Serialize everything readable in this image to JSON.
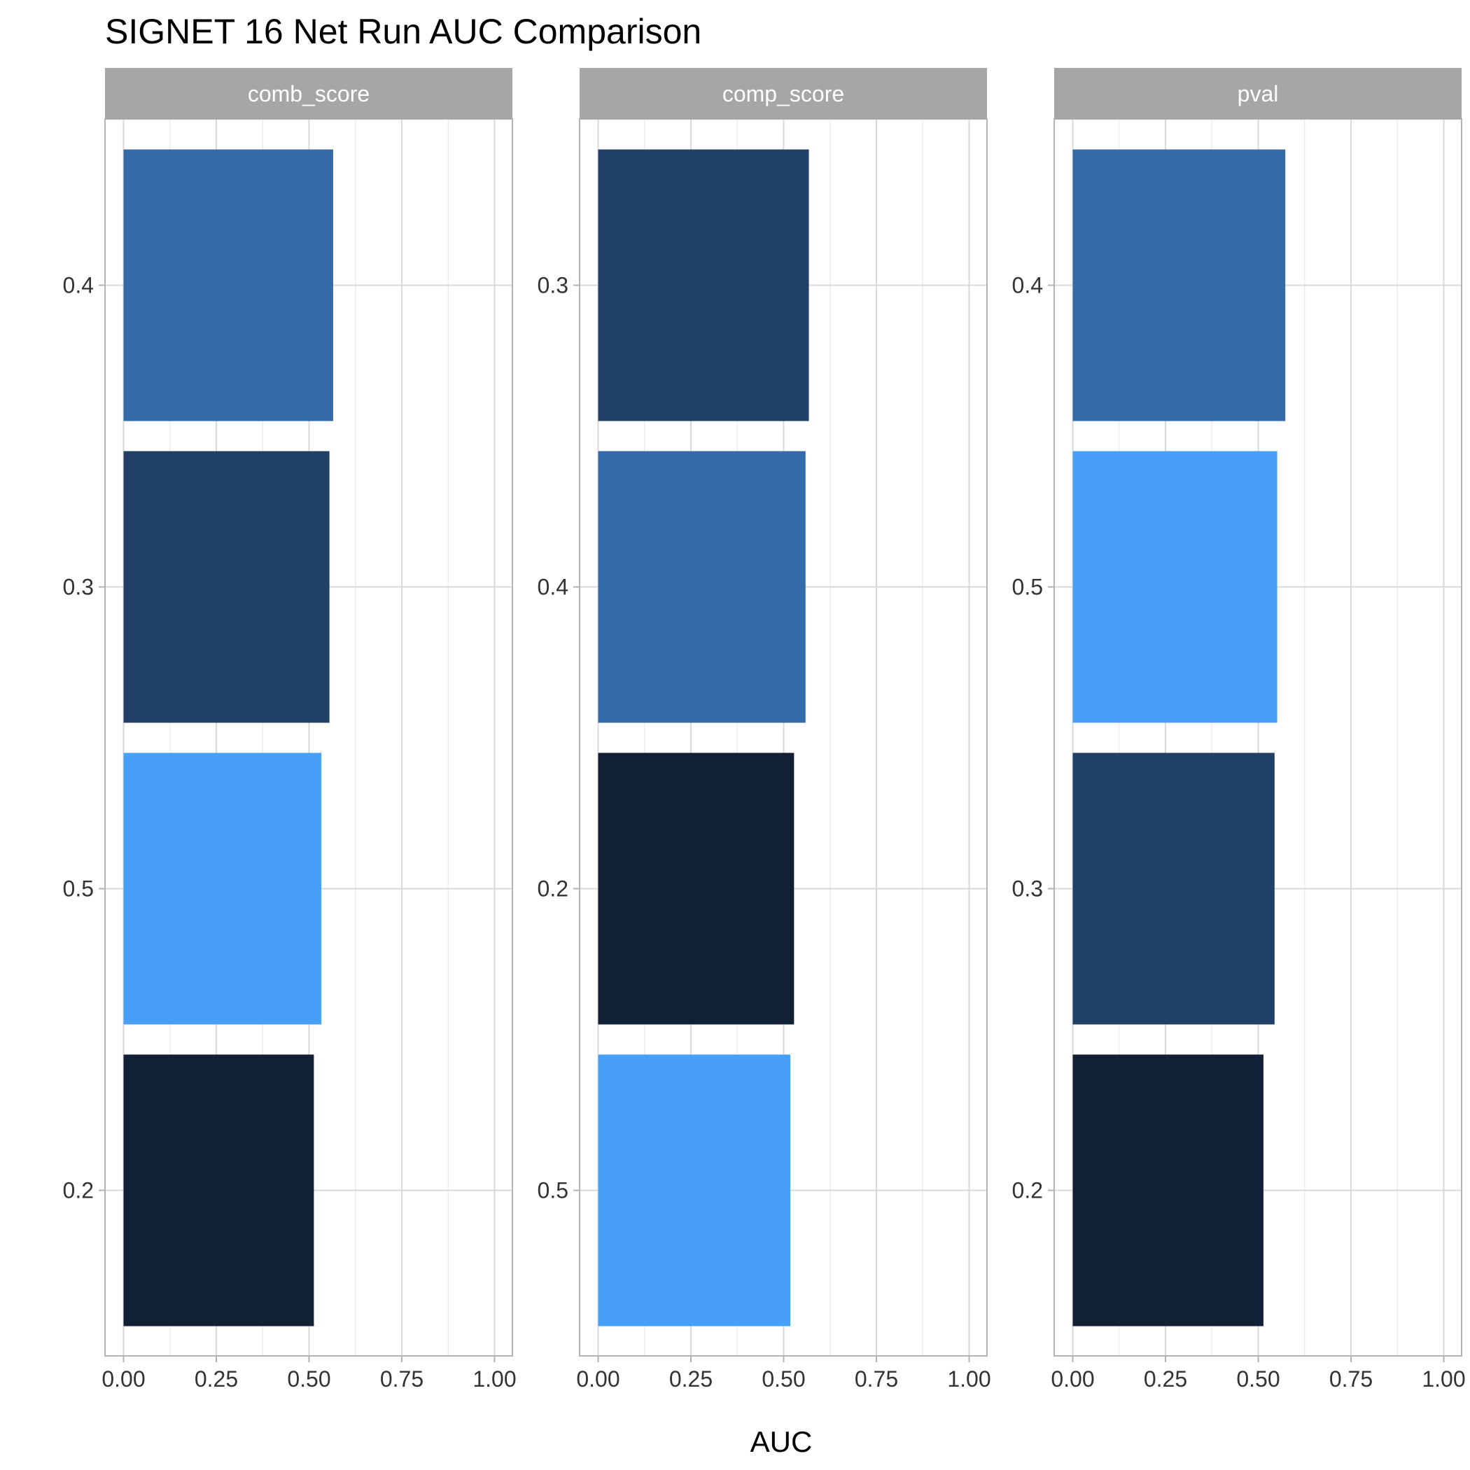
{
  "chart_data": {
    "type": "bar",
    "orientation": "horizontal",
    "title": "SIGNET 16 Net Run AUC Comparison",
    "xlabel": "AUC",
    "ylabel": "",
    "xlim": [
      0,
      1
    ],
    "x_ticks": [
      "0.00",
      "0.25",
      "0.50",
      "0.75",
      "1.00"
    ],
    "grid": true,
    "legend": "none",
    "fill_colors": {
      "0.2": "#112034",
      "0.3": "#204066",
      "0.4": "#326BA8",
      "0.5": "#489FF7"
    },
    "panels": [
      {
        "name": "comb_score",
        "categories": [
          "0.4",
          "0.3",
          "0.5",
          "0.2"
        ],
        "values": [
          0.565,
          0.555,
          0.533,
          0.513
        ]
      },
      {
        "name": "comp_score",
        "categories": [
          "0.3",
          "0.4",
          "0.2",
          "0.5"
        ],
        "values": [
          0.568,
          0.559,
          0.528,
          0.518
        ]
      },
      {
        "name": "pval",
        "categories": [
          "0.4",
          "0.5",
          "0.3",
          "0.2"
        ],
        "values": [
          0.573,
          0.551,
          0.544,
          0.514
        ]
      }
    ]
  }
}
